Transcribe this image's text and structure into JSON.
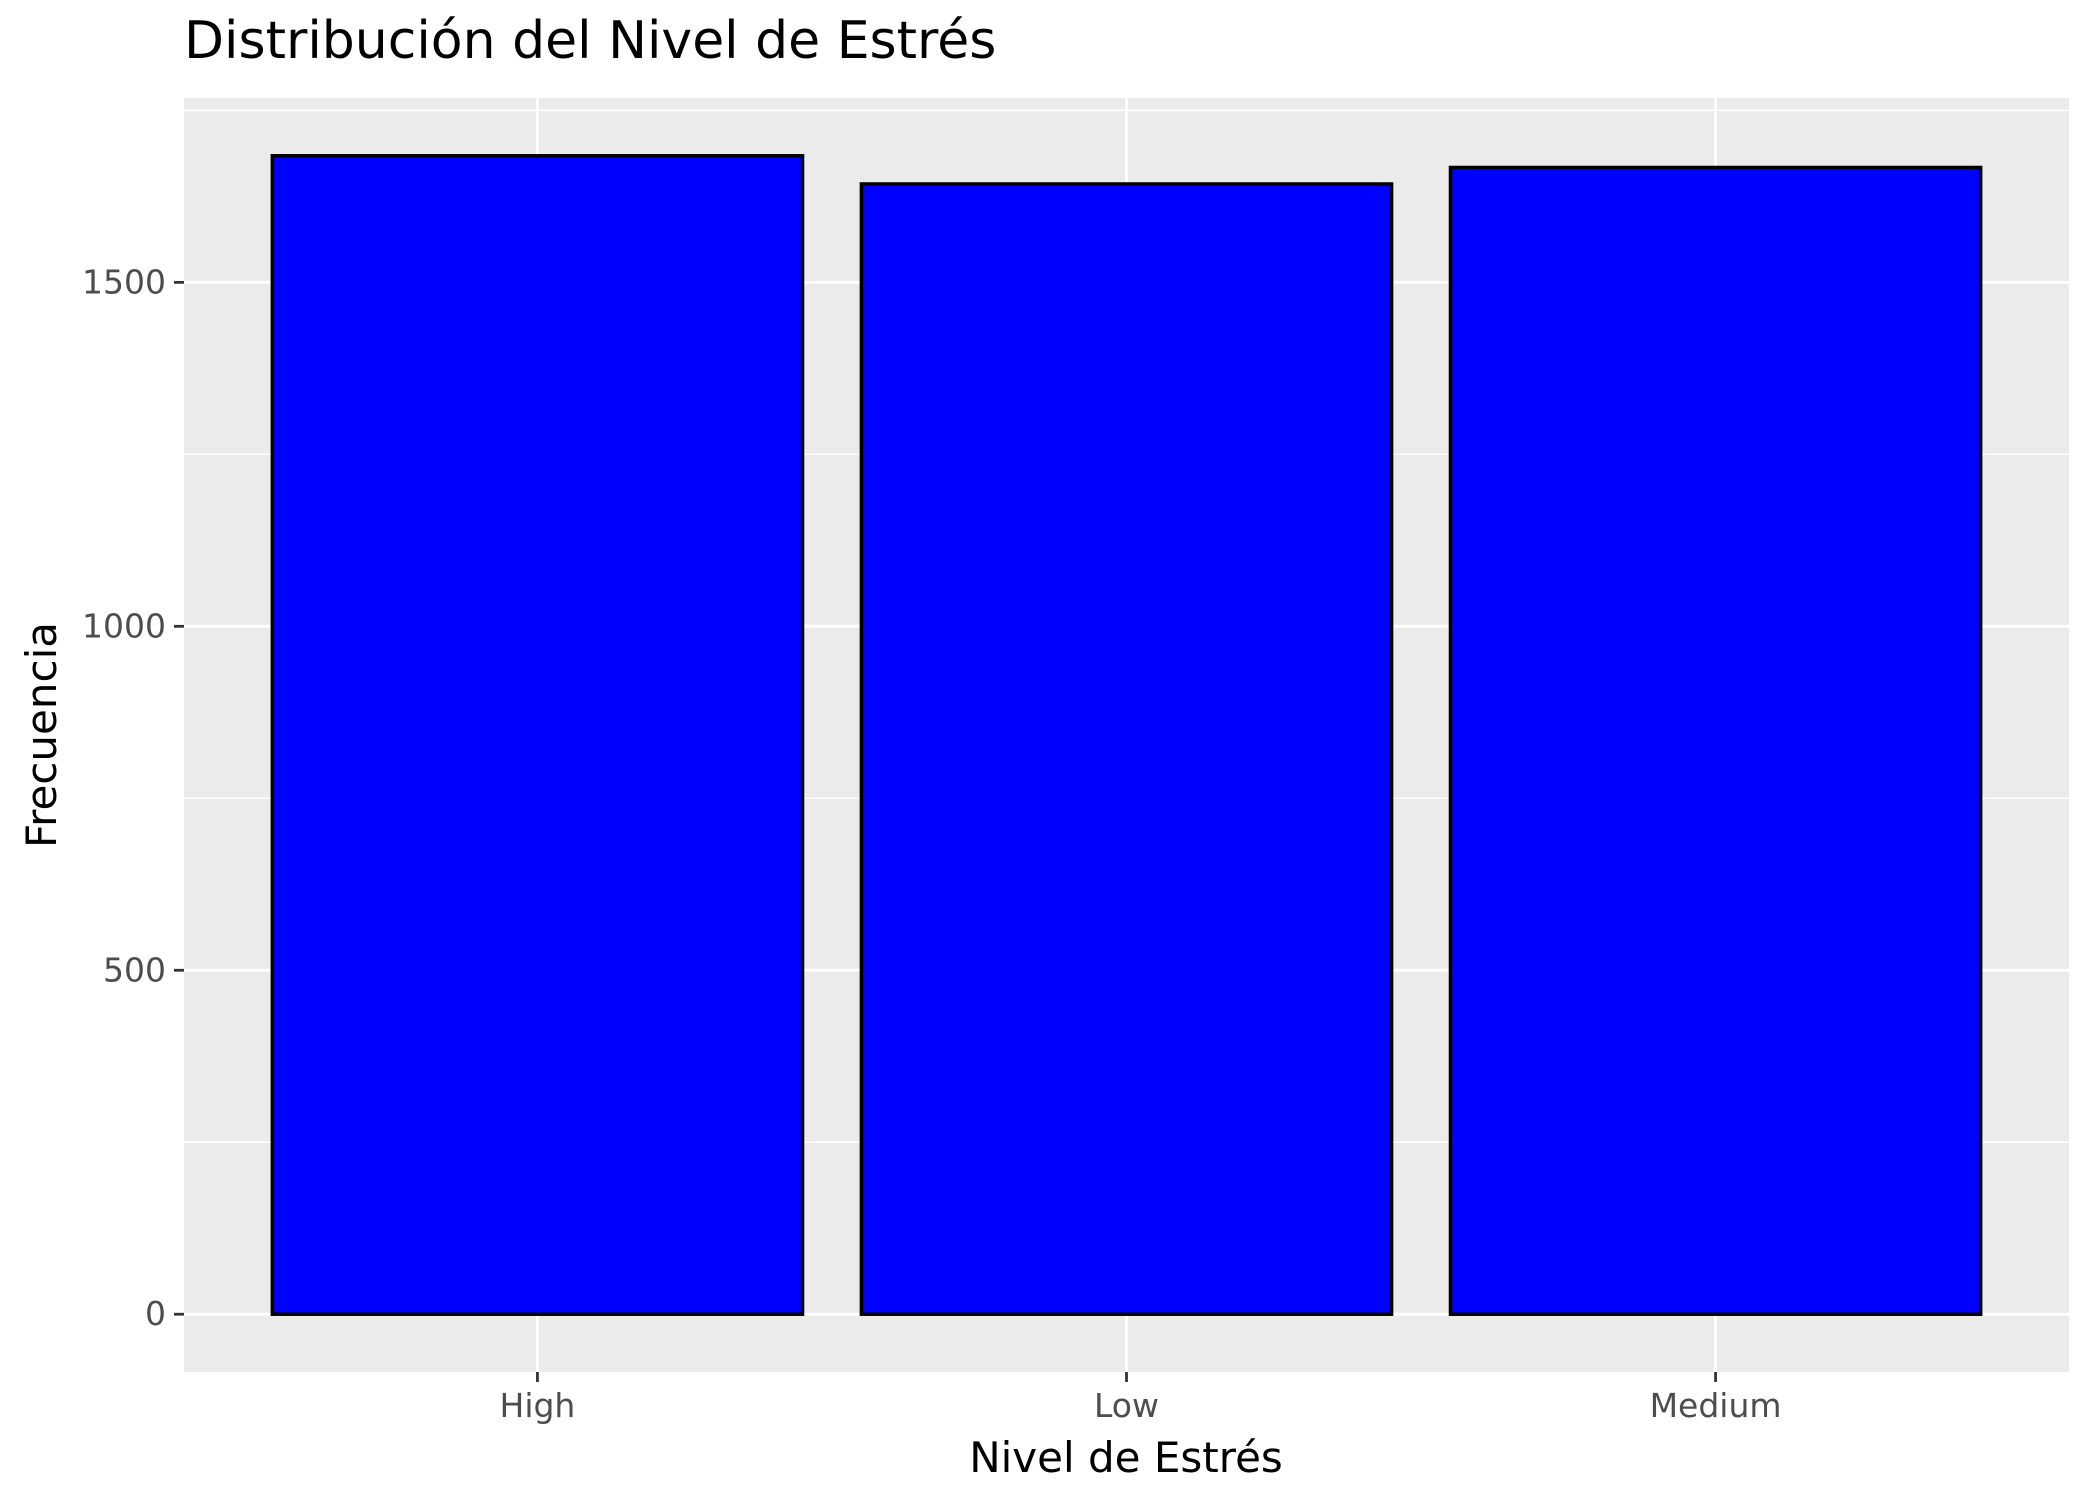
{
  "chart_data": {
    "type": "bar",
    "title": "Distribución del Nivel de Estrés",
    "xlabel": "Nivel de Estrés",
    "ylabel": "Frecuencia",
    "categories": [
      "High",
      "Low",
      "Medium"
    ],
    "values": [
      1684,
      1643,
      1667
    ],
    "ylim": [
      -84,
      1768
    ],
    "yticks": [
      0,
      500,
      1000,
      1500
    ],
    "ytick_labels": [
      "0",
      "500",
      "1000",
      "1500"
    ],
    "grid": true,
    "legend": "none",
    "colors": {
      "bar_fill": "#0000ff",
      "bar_stroke": "#000000",
      "panel_background": "#ebebeb",
      "grid": "#ffffff"
    }
  }
}
